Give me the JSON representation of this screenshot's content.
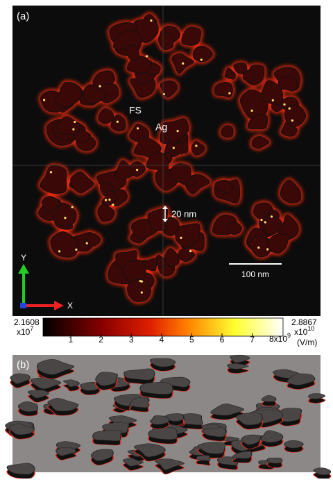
{
  "panel_a": {
    "label": "(a)",
    "annotations": {
      "fs": "FS",
      "ag": "Ag",
      "gap": "20 nm",
      "scale_bar": "100 nm"
    },
    "axes": {
      "y": "Y",
      "x": "X"
    },
    "colorbar": {
      "min": {
        "mantissa": "2.1608",
        "base": "x10",
        "exponent": "7"
      },
      "max": {
        "mantissa": "2.8867",
        "base": "x10",
        "exponent": "10"
      },
      "ticks": [
        "1",
        "2",
        "3",
        "4",
        "5",
        "6",
        "7"
      ],
      "last_tick": {
        "base": "8x10",
        "exponent": "9"
      },
      "unit": "(V/m)"
    }
  },
  "panel_b": {
    "label": "(b)"
  }
}
